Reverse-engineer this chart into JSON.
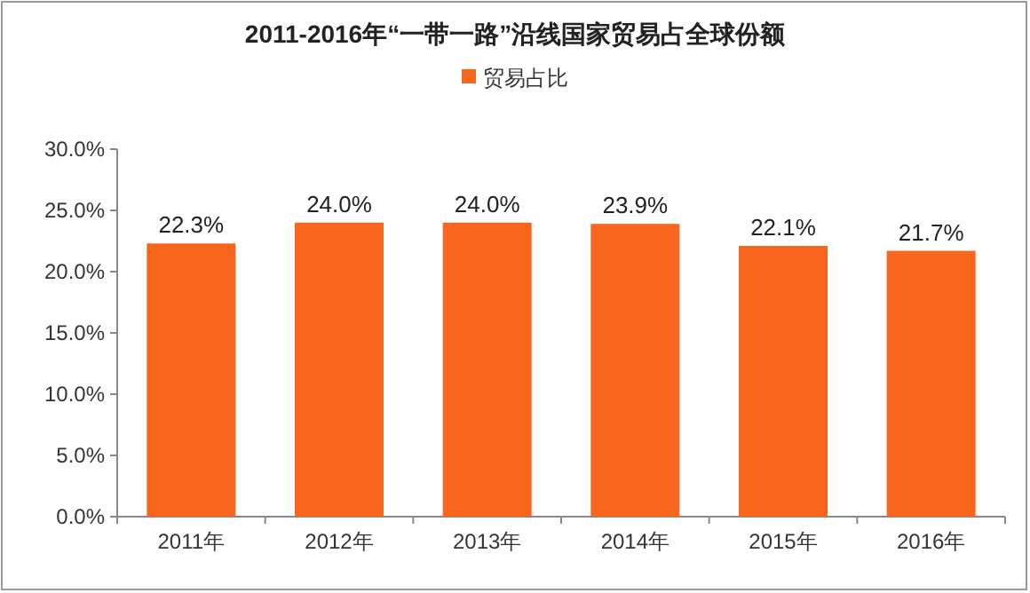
{
  "chart_data": {
    "type": "bar",
    "title": "2011-2016年“一带一路”沿线国家贸易占全球份额",
    "categories": [
      "2011年",
      "2012年",
      "2013年",
      "2014年",
      "2015年",
      "2016年"
    ],
    "series": [
      {
        "name": "贸易占比",
        "color": "#f7661c",
        "values": [
          22.3,
          24.0,
          24.0,
          23.9,
          22.1,
          21.7
        ],
        "value_labels": [
          "22.3%",
          "24.0%",
          "24.0%",
          "23.9%",
          "22.1%",
          "21.7%"
        ]
      }
    ],
    "ylim": [
      0,
      30
    ],
    "yticks": [
      {
        "value": 0,
        "label": "0.0%"
      },
      {
        "value": 5,
        "label": "5.0%"
      },
      {
        "value": 10,
        "label": "10.0%"
      },
      {
        "value": 15,
        "label": "15.0%"
      },
      {
        "value": 20,
        "label": "20.0%"
      },
      {
        "value": 25,
        "label": "25.0%"
      },
      {
        "value": 30,
        "label": "30.0%"
      }
    ],
    "grid": false,
    "legend": "top"
  }
}
